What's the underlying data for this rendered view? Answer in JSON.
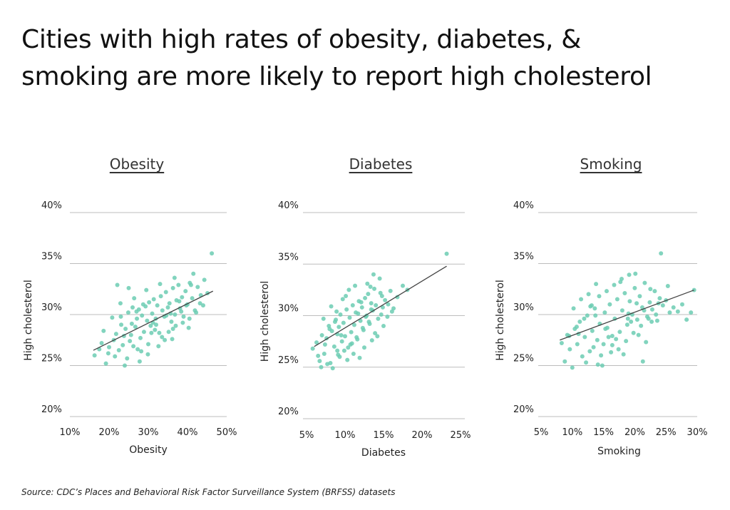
{
  "title_lines": [
    "Cities with high rates of obesity, diabetes, &",
    "smoking are more likely to report high cholesterol"
  ],
  "source": "Source:  CDC’s Places and Behavioral Risk Factor Surveillance System (BRFSS) datasets",
  "colors": {
    "point": "#6ccdb3",
    "trend": "#444444",
    "grid": "#bdbdbd",
    "text": "#222222"
  },
  "chart_data": [
    {
      "type": "scatter",
      "title": "Obesity",
      "xlabel": "Obesity",
      "ylabel": "High cholesterol",
      "xlim": [
        10,
        50
      ],
      "ylim": [
        20,
        40
      ],
      "xticks": [
        10,
        20,
        30,
        40,
        50
      ],
      "xtick_labels": [
        "10%",
        "20%",
        "30%",
        "40%",
        "50%"
      ],
      "yticks": [
        20,
        25,
        30,
        35,
        40
      ],
      "ytick_labels": [
        "20%",
        "25%",
        "30%",
        "35%",
        "40%"
      ],
      "trendline": {
        "x": [
          16,
          46.5
        ],
        "y": [
          26.5,
          32.3
        ]
      },
      "points": {
        "x": [
          16.3,
          17.5,
          18.1,
          19.2,
          20.0,
          21.2,
          21.8,
          22.5,
          23.1,
          23.8,
          24.2,
          24.9,
          25.3,
          25.8,
          26.2,
          26.7,
          27.1,
          27.6,
          28.0,
          28.4,
          28.9,
          29.3,
          29.7,
          30.2,
          30.6,
          31.0,
          31.4,
          31.9,
          32.3,
          32.8,
          33.2,
          33.6,
          34.1,
          34.5,
          35.0,
          35.4,
          35.9,
          36.3,
          36.8,
          37.2,
          37.7,
          38.1,
          38.6,
          39.0,
          39.5,
          40.0,
          40.6,
          41.2,
          41.9,
          42.6,
          43.4,
          44.3,
          45.1,
          46.2,
          18.6,
          20.8,
          22.9,
          24.6,
          26.4,
          28.2,
          30.0,
          31.7,
          33.5,
          35.2,
          37.0,
          38.8,
          40.5,
          42.2,
          44.0,
          21.5,
          23.5,
          25.6,
          27.8,
          29.9,
          32.0,
          34.2,
          36.3,
          38.4,
          40.3,
          19.8,
          24.0,
          27.3,
          30.8,
          34.6,
          37.9,
          41.5,
          25.0,
          28.7,
          32.6,
          36.1,
          39.7,
          22.1,
          26.0,
          29.5,
          33.0,
          36.7,
          40.9,
          43.2,
          23.0,
          27.0,
          31.2,
          35.7
        ],
        "y": [
          26.0,
          26.6,
          27.2,
          25.2,
          26.8,
          27.5,
          28.1,
          26.5,
          29.0,
          27.9,
          28.6,
          30.2,
          27.4,
          29.1,
          26.9,
          28.8,
          29.6,
          30.5,
          27.7,
          29.9,
          28.3,
          30.8,
          29.4,
          31.2,
          28.9,
          30.1,
          31.5,
          29.6,
          30.9,
          28.2,
          31.8,
          30.4,
          29.8,
          32.2,
          30.7,
          31.1,
          29.3,
          32.6,
          30.0,
          31.4,
          32.9,
          30.6,
          31.7,
          29.8,
          32.3,
          31.0,
          33.1,
          31.6,
          30.4,
          32.7,
          31.9,
          33.4,
          32.1,
          36.0,
          28.4,
          29.7,
          31.1,
          25.7,
          31.6,
          26.4,
          27.1,
          28.5,
          27.8,
          28.3,
          28.9,
          29.2,
          29.6,
          30.2,
          30.9,
          25.9,
          27.0,
          28.0,
          25.4,
          26.1,
          29.0,
          27.5,
          28.6,
          30.3,
          28.7,
          26.2,
          25.0,
          26.6,
          28.2,
          29.9,
          31.3,
          34.0,
          32.6,
          31.0,
          26.9,
          27.6,
          30.9,
          32.9,
          30.7,
          32.4,
          33.0,
          33.6,
          32.9,
          31.1,
          29.8,
          30.3,
          29.2,
          30.1
        ]
      }
    },
    {
      "type": "scatter",
      "title": "Diabetes",
      "xlabel": "Diabetes",
      "ylabel": "High cholesterol",
      "xlim": [
        5,
        25
      ],
      "ylim": [
        20,
        40
      ],
      "xticks": [
        5,
        10,
        15,
        20,
        25
      ],
      "xtick_labels": [
        "5%",
        "10%",
        "15%",
        "20%",
        "25%"
      ],
      "yticks": [
        20,
        25,
        30,
        35,
        40
      ],
      "ytick_labels": [
        "20%",
        "25%",
        "30%",
        "35%",
        "40%"
      ],
      "trendline": {
        "x": [
          6.0,
          23.2
        ],
        "y": [
          27.0,
          34.8
        ]
      },
      "points": {
        "x": [
          5.8,
          6.3,
          6.7,
          7.0,
          7.3,
          7.6,
          7.9,
          8.1,
          8.3,
          8.6,
          8.8,
          9.0,
          9.2,
          9.4,
          9.6,
          9.8,
          10.0,
          10.2,
          10.4,
          10.6,
          10.8,
          11.0,
          11.2,
          11.4,
          11.6,
          11.8,
          12.0,
          12.2,
          12.4,
          12.6,
          12.8,
          13.0,
          13.2,
          13.4,
          13.6,
          13.8,
          14.0,
          14.3,
          14.6,
          14.9,
          15.2,
          15.5,
          15.9,
          16.3,
          16.8,
          17.5,
          18.1,
          23.2,
          6.9,
          7.7,
          8.4,
          9.1,
          9.9,
          10.7,
          11.5,
          12.3,
          13.1,
          13.9,
          14.7,
          15.6,
          7.2,
          8.0,
          8.9,
          9.7,
          10.5,
          11.3,
          12.1,
          12.9,
          13.7,
          14.5,
          8.2,
          9.5,
          10.9,
          12.5,
          13.5,
          14.2,
          15.0,
          6.5,
          7.4,
          8.7,
          10.1,
          11.7,
          13.3,
          14.8,
          16.1,
          9.3,
          11.1,
          12.7,
          9.0,
          10.3,
          11.9,
          13.4
        ],
        "y": [
          26.8,
          27.4,
          25.6,
          28.1,
          26.3,
          27.8,
          29.0,
          25.4,
          28.5,
          27.0,
          29.6,
          26.6,
          28.9,
          30.1,
          27.5,
          29.3,
          28.0,
          30.6,
          26.9,
          29.8,
          28.4,
          31.0,
          29.1,
          30.3,
          27.7,
          31.4,
          29.5,
          30.8,
          28.6,
          31.7,
          30.0,
          32.1,
          29.2,
          31.2,
          30.5,
          32.6,
          31.0,
          29.7,
          32.2,
          30.8,
          31.5,
          29.9,
          32.4,
          30.7,
          31.8,
          32.9,
          32.5,
          36.0,
          25.0,
          25.3,
          24.9,
          26.2,
          26.6,
          27.2,
          27.9,
          28.8,
          29.4,
          28.3,
          30.1,
          31.1,
          29.7,
          28.7,
          30.4,
          31.6,
          32.5,
          32.9,
          31.3,
          33.1,
          34.0,
          33.6,
          30.9,
          28.1,
          27.3,
          26.9,
          27.6,
          28.0,
          29.0,
          26.1,
          27.2,
          29.4,
          31.9,
          30.2,
          32.8,
          31.9,
          30.4,
          26.0,
          26.3,
          29.9,
          28.2,
          25.7,
          25.9,
          30.6
        ]
      }
    },
    {
      "type": "scatter",
      "title": "Smoking",
      "xlabel": "Smoking",
      "ylabel": "High cholesterol",
      "xlim": [
        5,
        30
      ],
      "ylim": [
        20,
        40
      ],
      "xticks": [
        5,
        10,
        15,
        20,
        25,
        30
      ],
      "xtick_labels": [
        "5%",
        "10%",
        "15%",
        "20%",
        "25%",
        "30%"
      ],
      "yticks": [
        20,
        25,
        30,
        35,
        40
      ],
      "ytick_labels": [
        "20%",
        "25%",
        "30%",
        "35%",
        "40%"
      ],
      "trendline": {
        "x": [
          8.0,
          29.5
        ],
        "y": [
          27.5,
          32.4
        ]
      },
      "points": {
        "x": [
          8.3,
          8.8,
          9.2,
          9.6,
          10.0,
          10.4,
          10.8,
          11.2,
          11.6,
          12.0,
          12.4,
          12.8,
          13.2,
          13.6,
          14.0,
          14.4,
          14.8,
          15.2,
          15.6,
          16.0,
          16.4,
          16.8,
          17.2,
          17.6,
          18.0,
          18.4,
          18.8,
          19.2,
          19.6,
          20.0,
          20.4,
          20.8,
          21.2,
          21.6,
          22.0,
          22.4,
          22.8,
          23.2,
          23.6,
          24.0,
          24.5,
          25.0,
          25.6,
          26.2,
          26.9,
          27.6,
          28.3,
          29.0,
          29.5,
          24.2,
          9.5,
          10.7,
          11.9,
          13.1,
          14.3,
          15.5,
          16.7,
          17.9,
          19.1,
          20.3,
          21.5,
          22.7,
          10.2,
          11.4,
          12.6,
          13.8,
          15.0,
          16.2,
          17.4,
          18.6,
          19.8,
          21.0,
          22.2,
          23.4,
          12.2,
          13.4,
          14.6,
          15.8,
          17.0,
          18.2,
          19.4,
          20.6,
          21.8,
          11.0,
          14.1,
          16.4,
          18.9,
          21.3,
          23.8,
          12.9,
          15.3,
          17.7,
          20.1,
          22.5,
          25.3,
          13.7,
          19.0
        ],
        "y": [
          27.2,
          25.4,
          28.0,
          26.6,
          24.8,
          28.6,
          27.1,
          29.3,
          25.9,
          27.8,
          29.9,
          26.4,
          28.4,
          30.6,
          27.5,
          29.1,
          25.0,
          30.2,
          28.7,
          31.0,
          27.9,
          29.6,
          31.5,
          28.3,
          30.4,
          32.1,
          29.0,
          31.3,
          30.0,
          32.6,
          29.5,
          31.8,
          30.7,
          33.1,
          29.8,
          31.2,
          30.5,
          32.3,
          29.4,
          31.6,
          30.9,
          31.4,
          30.2,
          30.7,
          30.3,
          31.0,
          29.5,
          30.2,
          32.4,
          36.0,
          27.9,
          28.8,
          29.6,
          30.9,
          31.8,
          32.3,
          32.9,
          33.5,
          33.9,
          31.1,
          30.4,
          29.3,
          30.6,
          31.5,
          32.0,
          33.0,
          27.1,
          26.3,
          26.6,
          27.4,
          28.2,
          28.9,
          29.6,
          30.0,
          25.3,
          26.8,
          26.0,
          27.8,
          27.6,
          26.1,
          29.3,
          28.0,
          27.3,
          28.1,
          25.1,
          27.0,
          29.6,
          25.4,
          31.1,
          30.8,
          28.6,
          33.2,
          34.0,
          32.5,
          32.8,
          29.9,
          30.1
        ]
      }
    }
  ]
}
